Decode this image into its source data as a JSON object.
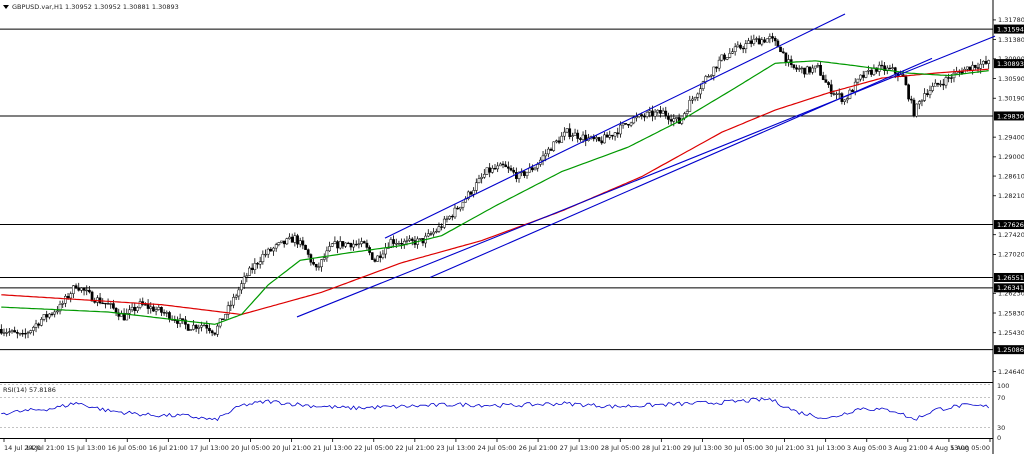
{
  "header": {
    "text": "GBPUSD.var,H1  1.30952 1.30952 1.30881 1.30893"
  },
  "indicator": {
    "label": "RSI(14) 57.8186",
    "levels": [
      "100",
      "70",
      "30",
      "0"
    ]
  },
  "colors": {
    "background": "#ffffff",
    "candle": "#000000",
    "channel": "#0000cc",
    "ma_fast": "#009900",
    "ma_slow": "#dd0000",
    "level_line": "#000000",
    "rsi_line": "#0000cc",
    "tag_bg": "#000000"
  },
  "chart_data": [
    {
      "type": "candlestick",
      "symbol": "GBPUSD.var",
      "timeframe": "H1",
      "ylim": [
        1.2447,
        1.319
      ],
      "y_ticks": [
        "1.31780",
        "1.31380",
        "1.30990",
        "1.30590",
        "1.30190",
        "1.29400",
        "1.29000",
        "1.28610",
        "1.28210",
        "1.27420",
        "1.27020",
        "1.26230",
        "1.25830",
        "1.25430",
        "1.24640"
      ],
      "x_ticks": [
        "14 Jul 2020",
        "14 Jul 21:00",
        "15 Jul 13:00",
        "16 Jul 05:00",
        "16 Jul 21:00",
        "17 Jul 13:00",
        "20 Jul 05:00",
        "20 Jul 21:00",
        "21 Jul 13:00",
        "22 Jul 05:00",
        "22 Jul 21:00",
        "23 Jul 13:00",
        "24 Jul 05:00",
        "26 Jul 21:00",
        "27 Jul 13:00",
        "28 Jul 05:00",
        "28 Jul 21:00",
        "29 Jul 13:00",
        "30 Jul 05:00",
        "30 Jul 21:00",
        "31 Jul 13:00",
        "3 Aug 05:00",
        "3 Aug 21:00",
        "4 Aug 13:00",
        "5 Aug 05:00"
      ],
      "horizontal_levels": [
        1.31594,
        1.2983,
        1.27626,
        1.26551,
        1.26341,
        1.25086
      ],
      "level_labels": [
        "1.31594",
        "1.29830",
        "1.27626",
        "1.26551",
        "1.26341",
        "1.25086"
      ],
      "current_price": 1.30893,
      "current_price_label": "1.30893",
      "price_anchors": [
        [
          0,
          1.255
        ],
        [
          8,
          1.2535
        ],
        [
          15,
          1.257
        ],
        [
          22,
          1.2595
        ],
        [
          28,
          1.264
        ],
        [
          34,
          1.2615
        ],
        [
          40,
          1.26
        ],
        [
          46,
          1.2575
        ],
        [
          52,
          1.26
        ],
        [
          58,
          1.259
        ],
        [
          64,
          1.2575
        ],
        [
          70,
          1.2555
        ],
        [
          76,
          1.256
        ],
        [
          80,
          1.2545
        ],
        [
          86,
          1.26
        ],
        [
          92,
          1.266
        ],
        [
          98,
          1.27
        ],
        [
          104,
          1.272
        ],
        [
          110,
          1.2735
        ],
        [
          114,
          1.271
        ],
        [
          118,
          1.267
        ],
        [
          124,
          1.272
        ],
        [
          130,
          1.2725
        ],
        [
          136,
          1.272
        ],
        [
          140,
          1.269
        ],
        [
          146,
          1.273
        ],
        [
          152,
          1.2725
        ],
        [
          158,
          1.273
        ],
        [
          164,
          1.2755
        ],
        [
          170,
          1.279
        ],
        [
          176,
          1.283
        ],
        [
          182,
          1.287
        ],
        [
          188,
          1.288
        ],
        [
          194,
          1.286
        ],
        [
          200,
          1.288
        ],
        [
          206,
          1.292
        ],
        [
          212,
          1.295
        ],
        [
          218,
          1.294
        ],
        [
          224,
          1.293
        ],
        [
          230,
          1.295
        ],
        [
          236,
          1.2975
        ],
        [
          242,
          1.2985
        ],
        [
          248,
          1.299
        ],
        [
          254,
          1.297
        ],
        [
          258,
          1.301
        ],
        [
          264,
          1.306
        ],
        [
          270,
          1.31
        ],
        [
          276,
          1.312
        ],
        [
          282,
          1.3135
        ],
        [
          288,
          1.314
        ],
        [
          292,
          1.312
        ],
        [
          296,
          1.308
        ],
        [
          302,
          1.3075
        ],
        [
          306,
          1.308
        ],
        [
          310,
          1.304
        ],
        [
          316,
          1.3015
        ],
        [
          322,
          1.306
        ],
        [
          328,
          1.308
        ],
        [
          334,
          1.3075
        ],
        [
          338,
          1.306
        ],
        [
          342,
          1.299
        ],
        [
          346,
          1.303
        ],
        [
          352,
          1.305
        ],
        [
          358,
          1.307
        ],
        [
          364,
          1.3085
        ],
        [
          370,
          1.309
        ]
      ],
      "ma_fast_anchors": [
        [
          0,
          1.2595
        ],
        [
          40,
          1.2585
        ],
        [
          80,
          1.256
        ],
        [
          90,
          1.258
        ],
        [
          100,
          1.264
        ],
        [
          112,
          1.269
        ],
        [
          130,
          1.2705
        ],
        [
          150,
          1.272
        ],
        [
          165,
          1.274
        ],
        [
          185,
          1.28
        ],
        [
          210,
          1.287
        ],
        [
          235,
          1.292
        ],
        [
          255,
          1.2975
        ],
        [
          275,
          1.304
        ],
        [
          290,
          1.309
        ],
        [
          305,
          1.3095
        ],
        [
          320,
          1.3085
        ],
        [
          340,
          1.307
        ],
        [
          355,
          1.3065
        ],
        [
          370,
          1.3075
        ]
      ],
      "ma_slow_anchors": [
        [
          0,
          1.262
        ],
        [
          60,
          1.26
        ],
        [
          90,
          1.258
        ],
        [
          120,
          1.2625
        ],
        [
          150,
          1.2685
        ],
        [
          180,
          1.273
        ],
        [
          210,
          1.279
        ],
        [
          240,
          1.286
        ],
        [
          270,
          1.295
        ],
        [
          290,
          1.2995
        ],
        [
          310,
          1.303
        ],
        [
          330,
          1.306
        ],
        [
          350,
          1.307
        ],
        [
          370,
          1.3078
        ]
      ],
      "channel_upper": [
        [
          1.2735,
          385
        ],
        [
          1.319,
          845
        ]
      ],
      "channel_lower": [
        [
          1.2575,
          297
        ],
        [
          1.3145,
          995
        ]
      ],
      "channel_mid": [
        [
          1.2655,
          430
        ],
        [
          1.31,
          932
        ]
      ],
      "rsi_anchors": [
        [
          0,
          45
        ],
        [
          20,
          55
        ],
        [
          28,
          65
        ],
        [
          40,
          50
        ],
        [
          55,
          42
        ],
        [
          70,
          40
        ],
        [
          80,
          32
        ],
        [
          90,
          60
        ],
        [
          100,
          68
        ],
        [
          115,
          60
        ],
        [
          130,
          55
        ],
        [
          150,
          58
        ],
        [
          170,
          62
        ],
        [
          190,
          60
        ],
        [
          210,
          64
        ],
        [
          230,
          58
        ],
        [
          250,
          62
        ],
        [
          270,
          66
        ],
        [
          288,
          72
        ],
        [
          298,
          48
        ],
        [
          310,
          35
        ],
        [
          322,
          55
        ],
        [
          335,
          50
        ],
        [
          342,
          33
        ],
        [
          350,
          52
        ],
        [
          360,
          60
        ],
        [
          370,
          58
        ]
      ]
    }
  ]
}
